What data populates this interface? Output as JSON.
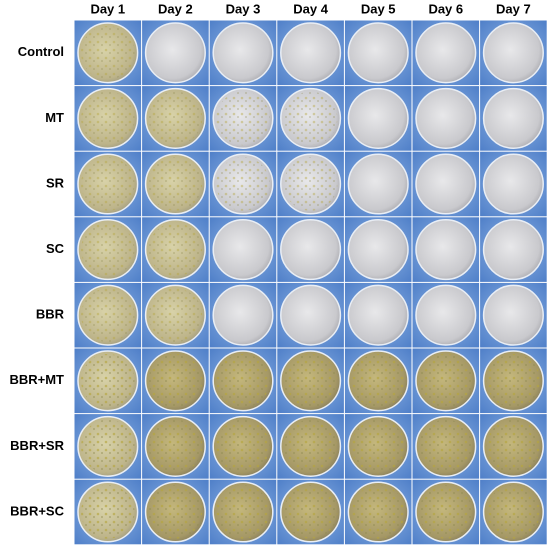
{
  "columns": [
    "Day 1",
    "Day 2",
    "Day 3",
    "Day 4",
    "Day 5",
    "Day 6",
    "Day 7"
  ],
  "rows": [
    "Control",
    "MT",
    "SR",
    "SC",
    "BBR",
    "BBR+MT",
    "BBR+SR",
    "BBR+SC"
  ]
}
